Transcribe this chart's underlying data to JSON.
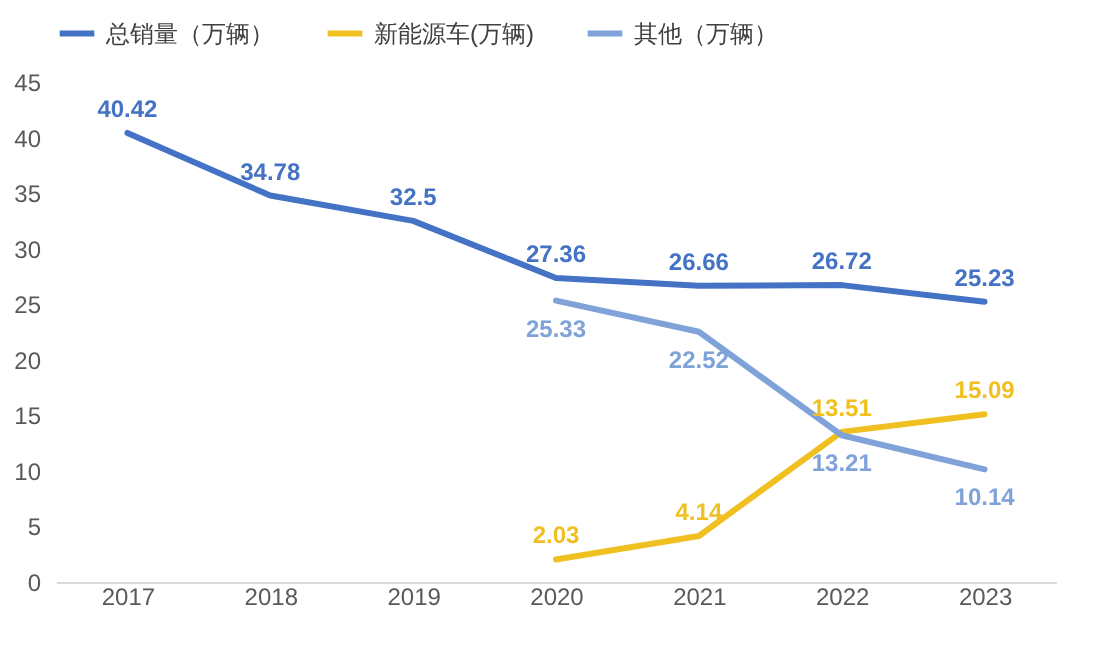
{
  "chart_data": {
    "type": "line",
    "categories": [
      "2017",
      "2018",
      "2019",
      "2020",
      "2021",
      "2022",
      "2023"
    ],
    "series": [
      {
        "name": "总销量（万辆）",
        "color": "#4472c4",
        "values": [
          40.42,
          34.78,
          32.5,
          27.36,
          26.66,
          26.72,
          25.23
        ]
      },
      {
        "name": "新能源车(万辆)",
        "color": "#f0c020",
        "values": [
          null,
          null,
          null,
          2.03,
          4.14,
          13.51,
          15.09
        ]
      },
      {
        "name": "其他（万辆）",
        "color": "#7fa3d9",
        "values": [
          null,
          null,
          null,
          25.33,
          22.52,
          13.21,
          10.14
        ]
      }
    ],
    "ylim": [
      0,
      45
    ],
    "yticks": [
      0,
      5,
      10,
      15,
      20,
      25,
      30,
      35,
      40,
      45
    ],
    "grid": false,
    "legend": "top",
    "data_labels": true,
    "marker": "none",
    "line_style": "solid"
  }
}
